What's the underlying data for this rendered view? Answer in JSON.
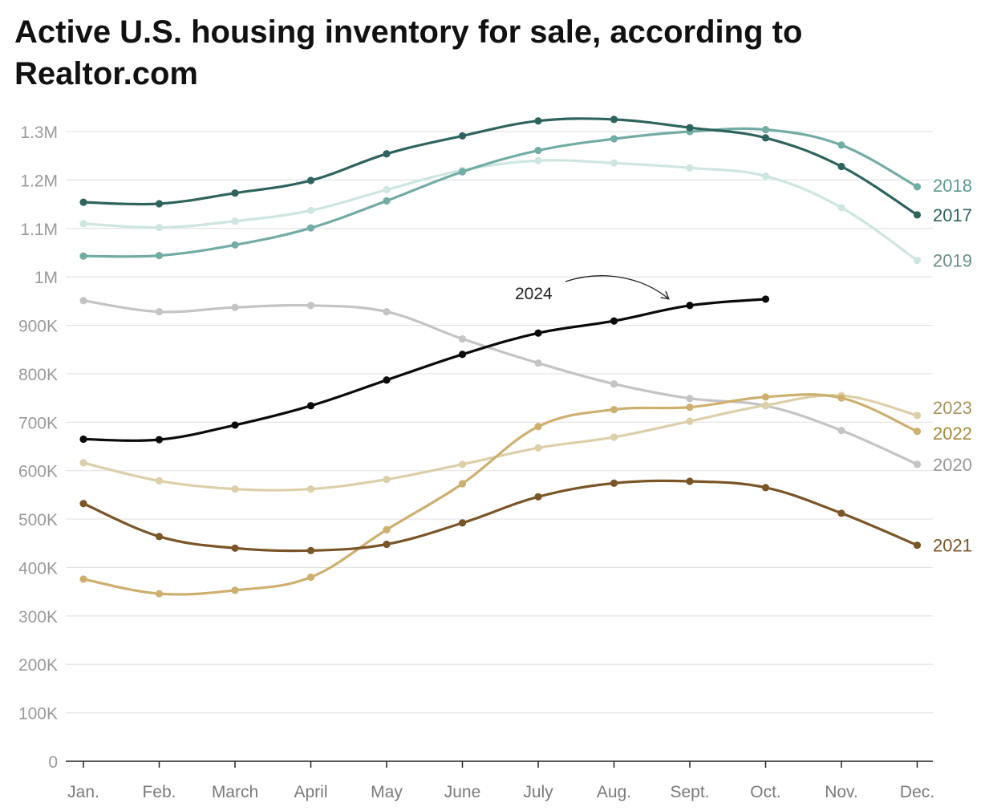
{
  "title": "Active U.S. housing inventory for sale, according to Realtor.com",
  "chart_data": {
    "type": "line",
    "title": "Active U.S. housing inventory for sale, according to Realtor.com",
    "xlabel": "",
    "ylabel": "",
    "categories": [
      "Jan.",
      "Feb.",
      "March",
      "April",
      "May",
      "June",
      "July",
      "Aug.",
      "Sept.",
      "Oct.",
      "Nov.",
      "Dec."
    ],
    "ylim": [
      0,
      1300000
    ],
    "yticks": [
      0,
      100000,
      200000,
      300000,
      400000,
      500000,
      600000,
      700000,
      800000,
      900000,
      1000000,
      1100000,
      1200000,
      1300000
    ],
    "ytick_labels": [
      "0",
      "100K",
      "200K",
      "300K",
      "400K",
      "500K",
      "600K",
      "700K",
      "800K",
      "900K",
      "1M",
      "1.1M",
      "1.2M",
      "1.3M"
    ],
    "grid": true,
    "series": [
      {
        "name": "2019",
        "color": "#cde6e1",
        "label_color": "#6b8f8a",
        "values": [
          1110000,
          1102000,
          1115000,
          1137000,
          1180000,
          1220000,
          1240000,
          1235000,
          1225000,
          1208000,
          1143000,
          1034000
        ]
      },
      {
        "name": "2018",
        "color": "#72aca4",
        "label_color": "#5a9a92",
        "values": [
          1043000,
          1044000,
          1066000,
          1101000,
          1157000,
          1217000,
          1261000,
          1285000,
          1300000,
          1304000,
          1272000,
          1186000
        ]
      },
      {
        "name": "2017",
        "color": "#2e645d",
        "label_color": "#2e645d",
        "values": [
          1154000,
          1151000,
          1173000,
          1199000,
          1254000,
          1291000,
          1322000,
          1325000,
          1308000,
          1287000,
          1228000,
          1128000
        ]
      },
      {
        "name": "2020",
        "color": "#c4c4c4",
        "label_color": "#9a9a9a",
        "values": [
          951000,
          928000,
          937000,
          941000,
          928000,
          872000,
          822000,
          779000,
          749000,
          734000,
          683000,
          613000
        ]
      },
      {
        "name": "2023",
        "color": "#dccfa9",
        "label_color": "#a89460",
        "values": [
          616000,
          579000,
          562000,
          562000,
          582000,
          613000,
          647000,
          669000,
          702000,
          735000,
          755000,
          714000
        ]
      },
      {
        "name": "2022",
        "color": "#cdb06f",
        "label_color": "#a8893c",
        "values": [
          376000,
          346000,
          353000,
          380000,
          478000,
          573000,
          691000,
          726000,
          731000,
          752000,
          750000,
          681000
        ]
      },
      {
        "name": "2021",
        "color": "#7a5527",
        "label_color": "#7a5527",
        "values": [
          532000,
          464000,
          440000,
          435000,
          448000,
          492000,
          546000,
          574000,
          578000,
          565000,
          512000,
          446000
        ]
      },
      {
        "name": "2024",
        "color": "#0a0a0a",
        "label_color": "#222222",
        "values": [
          665000,
          664000,
          694000,
          734000,
          787000,
          840000,
          884000,
          909000,
          941000,
          954000,
          null,
          null
        ]
      }
    ],
    "annotations": [
      {
        "text": "2024",
        "series": "2024",
        "arrow": true
      }
    ]
  }
}
